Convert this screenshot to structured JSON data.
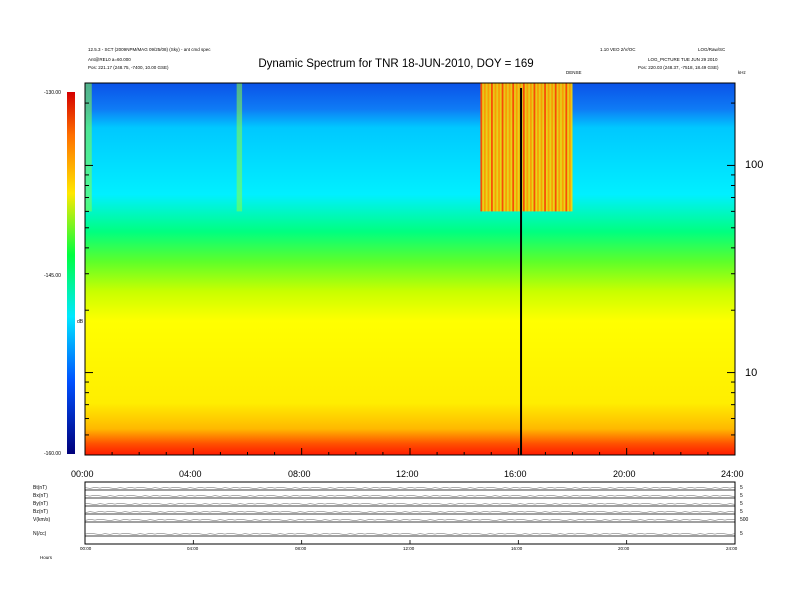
{
  "header": {
    "title": "Dynamic Spectrum for TNR 18-JUN-2010, DOY = 169",
    "left_line1": "12.5.3 - SCT (2009NPM/MAG 09/25/08) (Sky) - ant cmd spec",
    "left_line2": "Ant@REL0 a=60.000",
    "left_line3": "Pos:  221.17 (248.75, -7400, 10.00 GSE)",
    "right_top_a": "1.10 VEO 2/V/OC",
    "right_top_b": "LOG/Raw/SC",
    "right_line2": "LOG_PICTURE    TUE JUN 29 2010",
    "right_line3": "Pos:  220.03 (248.37, -7518, 18.49 GSE)",
    "event_label": "DENSE",
    "khz_label": "kHz"
  },
  "colorbar": {
    "ticks": [
      "-130.00",
      "-145.00",
      "-160.00"
    ],
    "unit": "dB"
  },
  "chart_data": {
    "type": "heatmap",
    "title": "Dynamic Spectrum for TNR 18-JUN-2010, DOY = 169",
    "x": {
      "tick_labels": [
        "00:00",
        "04:00",
        "08:00",
        "12:00",
        "16:00",
        "20:00",
        "24:00"
      ],
      "range_hours": [
        0,
        24
      ]
    },
    "y": {
      "scale": "log",
      "tick_labels": [
        "100",
        "10"
      ],
      "range_khz": [
        4,
        250
      ]
    },
    "colorbar": {
      "range_db": [
        -160,
        -130
      ],
      "tick_values": [
        -130,
        -145,
        -160
      ]
    },
    "event_line_hour": 16.1,
    "vertical_bands": [
      {
        "start": 0.0,
        "end": 0.25
      },
      {
        "start": 5.6,
        "end": 5.8
      },
      {
        "start": 14.6,
        "end": 18.0
      }
    ],
    "panels": [
      {
        "label": "Bt(nT)",
        "right_tick": "5"
      },
      {
        "label": "Bx(nT)",
        "right_tick": "5"
      },
      {
        "label": "By(nT)",
        "right_tick": "5"
      },
      {
        "label": "Bz(nT)",
        "right_tick": "5"
      },
      {
        "label": "V(km/s)",
        "right_tick": "500"
      },
      {
        "label": "N(/cc)",
        "right_tick": "5"
      }
    ],
    "bottom_time_labels": [
      "00:00",
      "04:00",
      "08:00",
      "12:00",
      "16:00",
      "20:00",
      "24:00"
    ],
    "bottom_axis_label": "Hours"
  }
}
